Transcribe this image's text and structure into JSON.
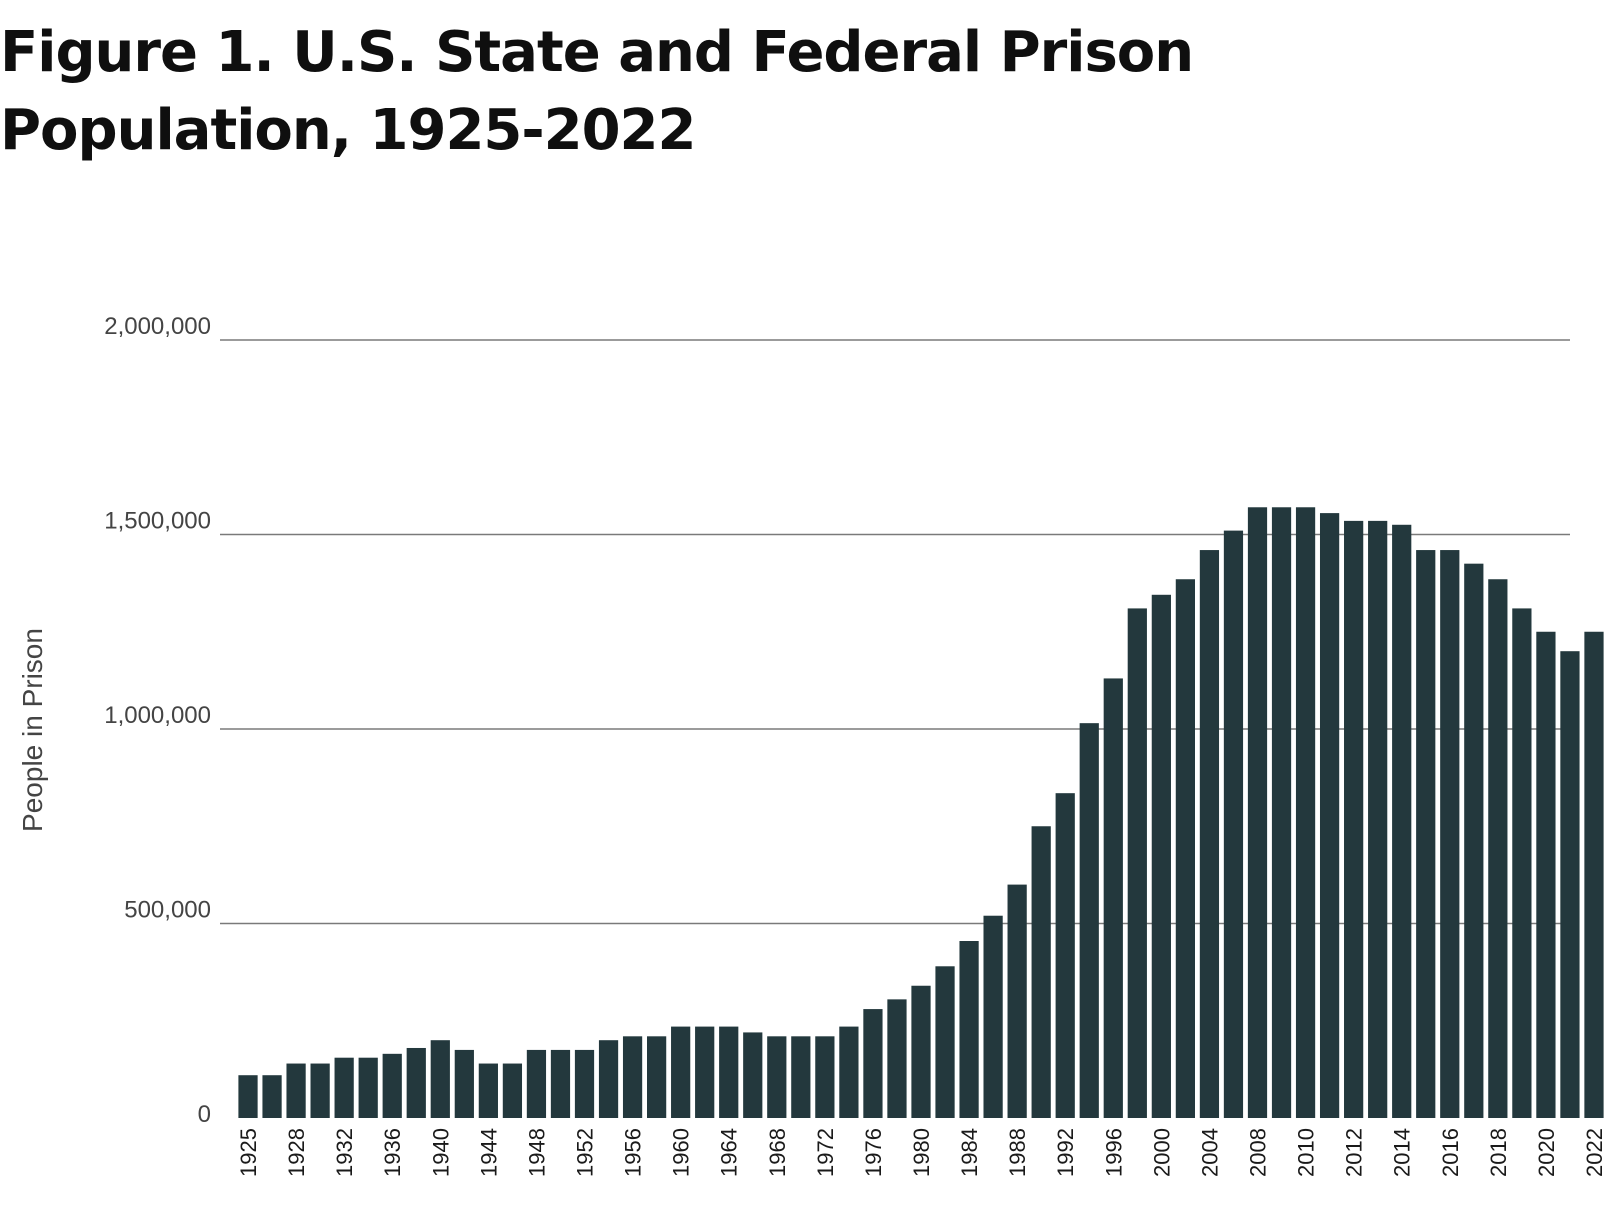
{
  "title": "Figure 1. U.S. State and Federal Prison Population, 1925-2022",
  "chart_data": {
    "type": "bar",
    "ylabel": "People in Prison",
    "xlabel": "",
    "ylim": [
      0,
      2000000
    ],
    "yticks": [
      0,
      500000,
      1000000,
      1500000,
      2000000
    ],
    "ytick_labels": [
      "0",
      "500,000",
      "1,000,000",
      "1,500,000",
      "2,000,000"
    ],
    "grid": true,
    "bar_color": "#23383d",
    "grid_color": "#7a7a7a",
    "categories": [
      "1925",
      "1926",
      "1928",
      "1930",
      "1932",
      "1934",
      "1936",
      "1938",
      "1940",
      "1942",
      "1944",
      "1946",
      "1948",
      "1950",
      "1952",
      "1954",
      "1956",
      "1958",
      "1960",
      "1962",
      "1964",
      "1966",
      "1968",
      "1970",
      "1972",
      "1974",
      "1976",
      "1978",
      "1980",
      "1982",
      "1984",
      "1986",
      "1988",
      "1990",
      "1992",
      "1994",
      "1996",
      "1998",
      "2000",
      "2002",
      "2004",
      "2006",
      "2008",
      "2009",
      "2010",
      "2011",
      "2012",
      "2013",
      "2014",
      "2015",
      "2016",
      "2017",
      "2018",
      "2019",
      "2020",
      "2021",
      "2022"
    ],
    "tick_labels": [
      "1925",
      "",
      "1928",
      "",
      "1932",
      "",
      "1936",
      "",
      "1940",
      "",
      "1944",
      "",
      "1948",
      "",
      "1952",
      "",
      "1956",
      "",
      "1960",
      "",
      "1964",
      "",
      "1968",
      "",
      "1972",
      "",
      "1976",
      "",
      "1980",
      "",
      "1984",
      "",
      "1988",
      "",
      "1992",
      "",
      "1996",
      "",
      "2000",
      "",
      "2004",
      "",
      "2008",
      "",
      "2010",
      "",
      "2012",
      "",
      "2014",
      "",
      "2016",
      "",
      "2018",
      "",
      "2020",
      "",
      "2022"
    ],
    "values": [
      110000,
      110000,
      140000,
      140000,
      155000,
      155000,
      165000,
      180000,
      200000,
      175000,
      140000,
      140000,
      175000,
      175000,
      175000,
      200000,
      210000,
      210000,
      235000,
      235000,
      235000,
      220000,
      210000,
      210000,
      210000,
      235000,
      280000,
      305000,
      340000,
      390000,
      455000,
      520000,
      600000,
      750000,
      835000,
      1015000,
      1130000,
      1310000,
      1345000,
      1385000,
      1460000,
      1510000,
      1570000,
      1570000,
      1570000,
      1555000,
      1535000,
      1535000,
      1525000,
      1460000,
      1460000,
      1425000,
      1385000,
      1310000,
      1250000,
      1200000,
      1250000
    ]
  }
}
